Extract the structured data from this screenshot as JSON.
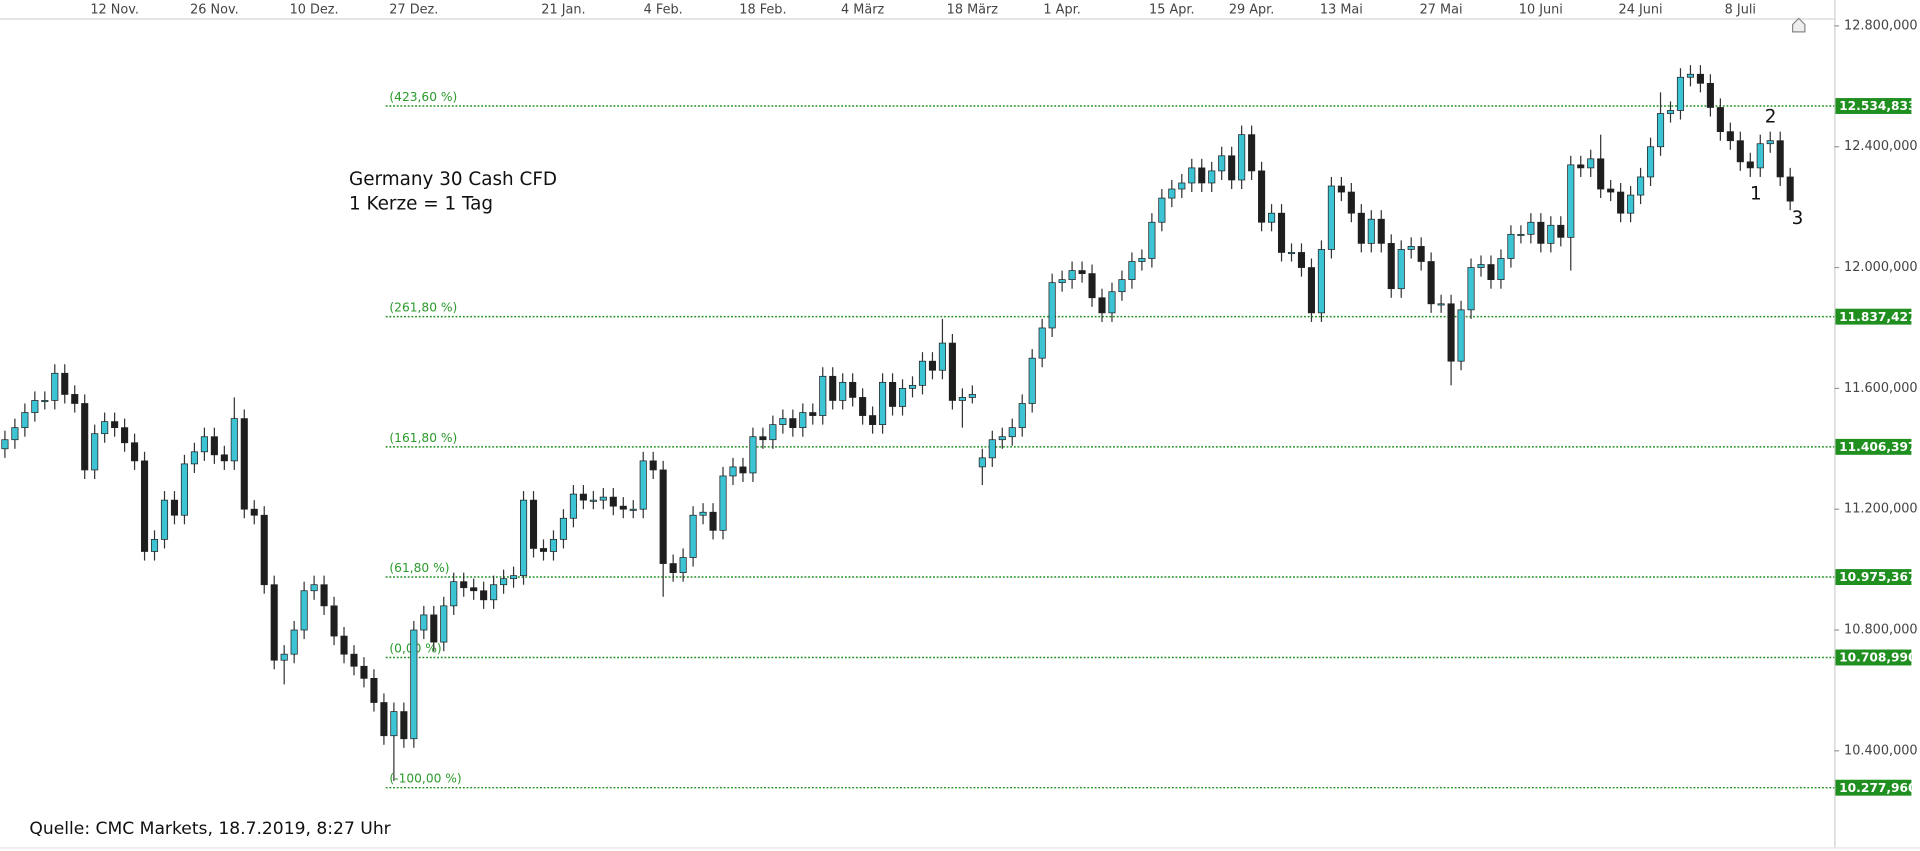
{
  "chart_data": {
    "type": "candlestick",
    "title": "Germany 30 Cash CFD",
    "subtitle": "1 Kerze = 1 Tag",
    "source": "Quelle: CMC Markets, 18.7.2019, 8:27 Uhr",
    "annotations": [
      "1",
      "2",
      "3"
    ],
    "up_color": "#3cc3d4",
    "down_color": "#1e1e1e",
    "level_color": "#1f8f1f",
    "ylim": [
      10190,
      12825
    ],
    "yticks": [
      {
        "value": 10400,
        "label": "10.400,000"
      },
      {
        "value": 10800,
        "label": "10.800,000"
      },
      {
        "value": 11200,
        "label": "11.200,000"
      },
      {
        "value": 11600,
        "label": "11.600,000"
      },
      {
        "value": 12000,
        "label": "12.000,000"
      },
      {
        "value": 12400,
        "label": "12.400,000"
      },
      {
        "value": 12800,
        "label": "12.800,000"
      }
    ],
    "levels": [
      {
        "value": 12534.833,
        "label": "12.534,833",
        "ratio": "(423,60 %)"
      },
      {
        "value": 11837.427,
        "label": "11.837,427",
        "ratio": "(261,80 %)"
      },
      {
        "value": 11406.397,
        "label": "11.406,397",
        "ratio": "(161,80 %)"
      },
      {
        "value": 10975.367,
        "label": "10.975,367",
        "ratio": "(61,80 %)"
      },
      {
        "value": 10708.99,
        "label": "10.708,990",
        "ratio": "(0,00 %)"
      },
      {
        "value": 10277.96,
        "label": "10.277,960",
        "ratio": "(-100,00 %)"
      }
    ],
    "categories": [
      null,
      null,
      null,
      null,
      null,
      null,
      null,
      null,
      null,
      null,
      null,
      "12 Nov.",
      null,
      null,
      null,
      null,
      null,
      null,
      null,
      null,
      null,
      "26 Nov.",
      null,
      null,
      null,
      null,
      null,
      null,
      null,
      null,
      null,
      "10 Dez.",
      null,
      null,
      null,
      null,
      null,
      null,
      null,
      null,
      null,
      "27 Dez.",
      null,
      null,
      null,
      null,
      null,
      null,
      null,
      null,
      null,
      null,
      null,
      null,
      null,
      null,
      "21 Jan.",
      null,
      null,
      null,
      null,
      null,
      null,
      null,
      null,
      null,
      "4 Feb.",
      null,
      null,
      null,
      null,
      null,
      null,
      null,
      null,
      null,
      "18 Feb.",
      null,
      null,
      null,
      null,
      null,
      null,
      null,
      null,
      null,
      "4 März",
      null,
      null,
      null,
      null,
      null,
      null,
      null,
      null,
      null,
      null,
      "18 März",
      null,
      null,
      null,
      null,
      null,
      null,
      null,
      null,
      "1 Apr.",
      null,
      null,
      null,
      null,
      null,
      null,
      null,
      null,
      null,
      null,
      "15 Apr.",
      null,
      null,
      null,
      null,
      null,
      null,
      null,
      "29 Apr.",
      null,
      null,
      null,
      null,
      null,
      null,
      null,
      null,
      "13 Mai",
      null,
      null,
      null,
      null,
      null,
      null,
      null,
      null,
      null,
      "27 Mai",
      null,
      null,
      null,
      null,
      null,
      null,
      null,
      null,
      null,
      "10 Juni",
      null,
      null,
      null,
      null,
      null,
      null,
      null,
      null,
      null,
      "24 Juni",
      null,
      null,
      null,
      null,
      null,
      null,
      null,
      null,
      null,
      "8 Juli",
      null,
      null,
      null,
      null,
      null
    ],
    "open": [
      11400,
      11430,
      11470,
      11520,
      11560,
      11560,
      11650,
      11580,
      11550,
      11330,
      11450,
      11490,
      11470,
      11420,
      11360,
      11060,
      11100,
      11230,
      11180,
      11350,
      11390,
      11440,
      11380,
      11360,
      11500,
      11200,
      11180,
      10950,
      10700,
      10720,
      10800,
      10930,
      10950,
      10880,
      10780,
      10720,
      10680,
      10640,
      10560,
      10450,
      10530,
      10440,
      10800,
      10850,
      10760,
      10880,
      10960,
      10940,
      10930,
      10900,
      10950,
      10970,
      10980,
      11230,
      11070,
      11060,
      11100,
      11170,
      11250,
      11230,
      11230,
      11240,
      11210,
      11200,
      11200,
      11360,
      11330,
      11020,
      10990,
      11040,
      11180,
      11190,
      11130,
      11310,
      11340,
      11320,
      11440,
      11430,
      11480,
      11500,
      11470,
      11520,
      11510,
      11640,
      11560,
      11620,
      11570,
      11510,
      11480,
      11620,
      11540,
      11600,
      11610,
      11690,
      11660,
      11750,
      11560,
      11570,
      11340,
      11370,
      11430,
      11440,
      11470,
      11550,
      11700,
      11800,
      11950,
      11960,
      11990,
      11980,
      11900,
      11850,
      11920,
      11960,
      12020,
      12030,
      12150,
      12230,
      12260,
      12280,
      12330,
      12280,
      12320,
      12370,
      12290,
      12440,
      12320,
      12150,
      12180,
      12050,
      12050,
      12000,
      11850,
      12060,
      12270,
      12250,
      12180,
      12080,
      12160,
      12080,
      11930,
      12060,
      12070,
      12020,
      11880,
      11880,
      11690,
      11860,
      12000,
      12010,
      11960,
      12030,
      12110,
      12110,
      12150,
      12080,
      12140,
      12100,
      12340,
      12330,
      12360,
      12260,
      12250,
      12180,
      12240,
      12300,
      12400,
      12510,
      12520,
      12630,
      12640,
      12610,
      12530,
      12450,
      12420,
      12350,
      12330,
      12410,
      12420,
      12300
    ],
    "high": [
      11460,
      11500,
      11550,
      11590,
      11590,
      11680,
      11680,
      11610,
      11580,
      11480,
      11520,
      11520,
      11500,
      11450,
      11390,
      11130,
      11260,
      11260,
      11380,
      11420,
      11470,
      11470,
      11410,
      11570,
      11530,
      11230,
      11210,
      10980,
      10750,
      10830,
      10960,
      10980,
      10980,
      10910,
      10810,
      10750,
      10710,
      10670,
      10590,
      10560,
      10560,
      10830,
      10880,
      10880,
      10910,
      10990,
      10990,
      10970,
      10960,
      10980,
      11000,
      11010,
      11260,
      11260,
      11100,
      11130,
      11200,
      11280,
      11280,
      11260,
      11270,
      11270,
      11240,
      11230,
      11390,
      11390,
      11360,
      11050,
      11070,
      11210,
      11220,
      11220,
      11340,
      11370,
      11370,
      11470,
      11470,
      11510,
      11530,
      11530,
      11550,
      11550,
      11670,
      11670,
      11650,
      11650,
      11600,
      11540,
      11650,
      11650,
      11630,
      11640,
      11720,
      11720,
      11830,
      11780,
      11600,
      11610,
      11400,
      11460,
      11470,
      11500,
      11580,
      11730,
      11830,
      11980,
      11990,
      12020,
      12020,
      12010,
      11930,
      11950,
      11990,
      12050,
      12060,
      12180,
      12260,
      12290,
      12310,
      12360,
      12360,
      12350,
      12400,
      12400,
      12470,
      12470,
      12350,
      12210,
      12210,
      12080,
      12080,
      12030,
      12090,
      12300,
      12300,
      12280,
      12210,
      12190,
      12190,
      12110,
      12090,
      12100,
      12100,
      12050,
      11910,
      11910,
      11890,
      12030,
      12040,
      12040,
      12060,
      12140,
      12140,
      12180,
      12180,
      12170,
      12170,
      12370,
      12370,
      12390,
      12440,
      12290,
      12280,
      12270,
      12330,
      12430,
      12580,
      12550,
      12660,
      12670,
      12670,
      12640,
      12560,
      12480,
      12450,
      12380,
      12440,
      12450,
      12450,
      12330
    ],
    "low": [
      11370,
      11400,
      11440,
      11490,
      11530,
      11530,
      11550,
      11520,
      11300,
      11300,
      11420,
      11440,
      11390,
      11330,
      11030,
      11030,
      11070,
      11150,
      11150,
      11320,
      11360,
      11350,
      11330,
      11330,
      11170,
      11150,
      10920,
      10670,
      10620,
      10690,
      10770,
      10900,
      10850,
      10750,
      10690,
      10650,
      10610,
      10530,
      10420,
      10300,
      10410,
      10410,
      10770,
      10730,
      10730,
      10850,
      10910,
      10900,
      10870,
      10870,
      10920,
      10940,
      10950,
      11040,
      11030,
      11030,
      11070,
      11140,
      11200,
      11200,
      11200,
      11180,
      11170,
      11170,
      11170,
      11300,
      10910,
      10960,
      10960,
      11010,
      11150,
      11100,
      11100,
      11280,
      11290,
      11290,
      11400,
      11400,
      11450,
      11440,
      11440,
      11480,
      11480,
      11530,
      11530,
      11540,
      11480,
      11450,
      11450,
      11510,
      11510,
      11570,
      11580,
      11630,
      11630,
      11530,
      11470,
      11550,
      11280,
      11340,
      11400,
      11410,
      11440,
      11520,
      11670,
      11770,
      11920,
      11930,
      11950,
      11870,
      11820,
      11820,
      11890,
      11930,
      11990,
      12000,
      12120,
      12200,
      12230,
      12250,
      12250,
      12250,
      12290,
      12260,
      12260,
      12290,
      12120,
      12120,
      12020,
      12020,
      11970,
      11820,
      11820,
      12030,
      12220,
      12150,
      12050,
      12050,
      12050,
      11900,
      11900,
      12030,
      11990,
      11850,
      11850,
      11610,
      11660,
      11830,
      11970,
      11930,
      11930,
      12000,
      12080,
      12080,
      12050,
      12050,
      12070,
      11990,
      12300,
      12300,
      12230,
      12220,
      12150,
      12150,
      12210,
      12270,
      12370,
      12480,
      12490,
      12600,
      12580,
      12500,
      12420,
      12390,
      12320,
      12300,
      12300,
      12380,
      12270,
      12190
    ],
    "close": [
      11430,
      11470,
      11520,
      11560,
      11560,
      11650,
      11580,
      11550,
      11330,
      11450,
      11490,
      11470,
      11420,
      11360,
      11060,
      11100,
      11230,
      11180,
      11350,
      11390,
      11440,
      11380,
      11360,
      11500,
      11200,
      11180,
      10950,
      10700,
      10720,
      10800,
      10930,
      10950,
      10880,
      10780,
      10720,
      10680,
      10640,
      10560,
      10450,
      10530,
      10440,
      10800,
      10850,
      10760,
      10880,
      10960,
      10940,
      10930,
      10900,
      10950,
      10970,
      10980,
      11230,
      11070,
      11060,
      11100,
      11170,
      11250,
      11230,
      11230,
      11240,
      11210,
      11200,
      11200,
      11360,
      11330,
      11020,
      10990,
      11040,
      11180,
      11190,
      11130,
      11310,
      11340,
      11320,
      11440,
      11430,
      11480,
      11500,
      11470,
      11520,
      11510,
      11640,
      11560,
      11620,
      11570,
      11510,
      11480,
      11620,
      11540,
      11600,
      11610,
      11690,
      11660,
      11750,
      11560,
      11570,
      11580,
      11370,
      11430,
      11440,
      11470,
      11550,
      11700,
      11800,
      11950,
      11960,
      11990,
      11980,
      11900,
      11850,
      11920,
      11960,
      12020,
      12030,
      12150,
      12230,
      12260,
      12280,
      12330,
      12280,
      12320,
      12370,
      12290,
      12440,
      12320,
      12150,
      12180,
      12050,
      12050,
      12000,
      11850,
      12060,
      12270,
      12250,
      12180,
      12080,
      12160,
      12080,
      11930,
      12060,
      12070,
      12020,
      11880,
      11880,
      11690,
      11860,
      12000,
      12010,
      11960,
      12030,
      12110,
      12110,
      12150,
      12080,
      12140,
      12100,
      12340,
      12330,
      12360,
      12260,
      12250,
      12180,
      12240,
      12300,
      12400,
      12510,
      12520,
      12630,
      12640,
      12610,
      12530,
      12450,
      12420,
      12350,
      12330,
      12410,
      12420,
      12300,
      12220
    ]
  }
}
